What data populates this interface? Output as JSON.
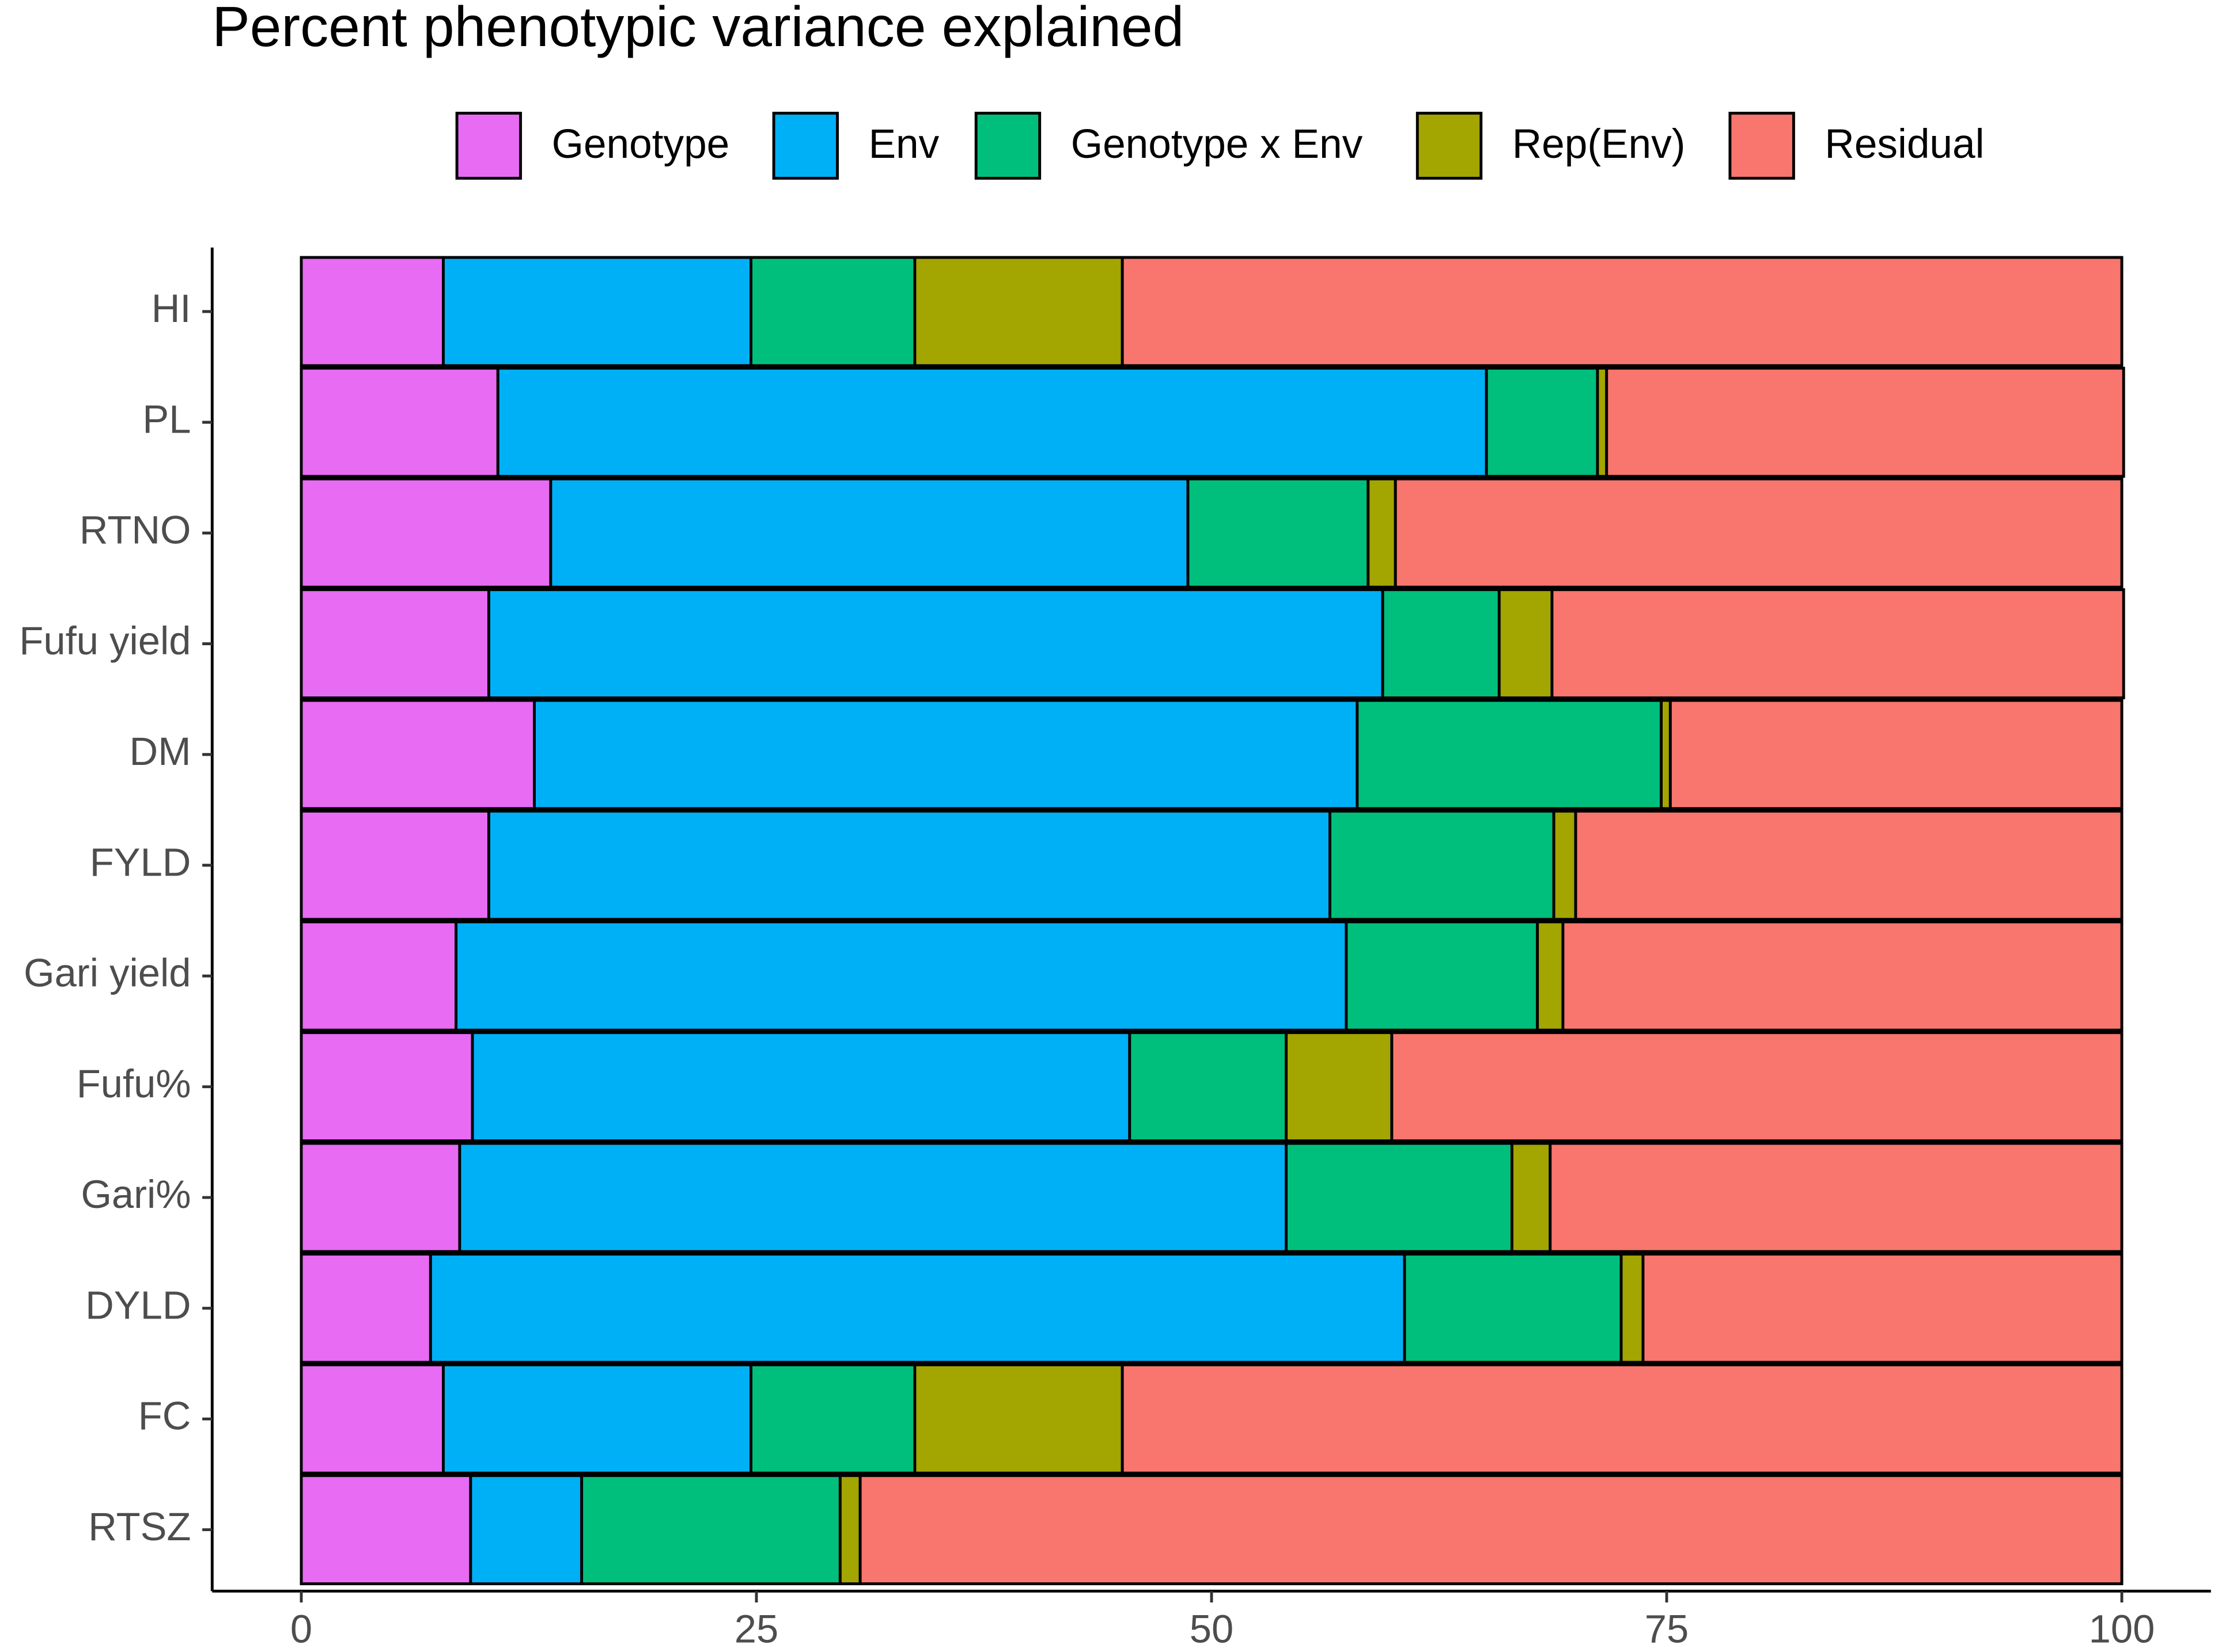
{
  "chart_data": {
    "type": "stacked-barh",
    "title": "Percent phenotypic variance explained",
    "categories": [
      "HI",
      "PL",
      "RTNO",
      "Fufu yield",
      "DM",
      "FYLD",
      "Gari yield",
      "Fufu%",
      "Gari%",
      "DYLD",
      "FC",
      "RTSZ"
    ],
    "series": [
      {
        "name": "Genotype",
        "color": "#E76BF3",
        "values": [
          7.8,
          10.8,
          13.7,
          10.3,
          12.8,
          10.3,
          8.5,
          9.4,
          8.7,
          7.1,
          7.8,
          9.3
        ]
      },
      {
        "name": "Env",
        "color": "#00B0F6",
        "values": [
          16.9,
          54.3,
          35.0,
          49.1,
          45.2,
          46.2,
          48.9,
          36.1,
          45.4,
          53.5,
          16.9,
          6.1
        ]
      },
      {
        "name": "Genotype x Env",
        "color": "#00BF7D",
        "values": [
          9.0,
          6.1,
          9.9,
          6.4,
          16.7,
          12.3,
          10.5,
          8.6,
          12.4,
          11.9,
          9.0,
          14.2
        ]
      },
      {
        "name": "Rep(Env)",
        "color": "#A3A500",
        "values": [
          11.4,
          0.5,
          1.5,
          2.9,
          0.5,
          1.2,
          1.4,
          5.8,
          2.1,
          1.2,
          11.4,
          1.1
        ]
      },
      {
        "name": "Residual",
        "color": "#F8766D",
        "values": [
          54.9,
          28.4,
          39.9,
          31.4,
          24.8,
          30.0,
          30.7,
          40.1,
          31.4,
          26.3,
          54.9,
          69.3
        ]
      }
    ],
    "xlim": [
      0,
      100
    ],
    "xticks": [
      0,
      25,
      50,
      75,
      100
    ],
    "legend": "top"
  }
}
